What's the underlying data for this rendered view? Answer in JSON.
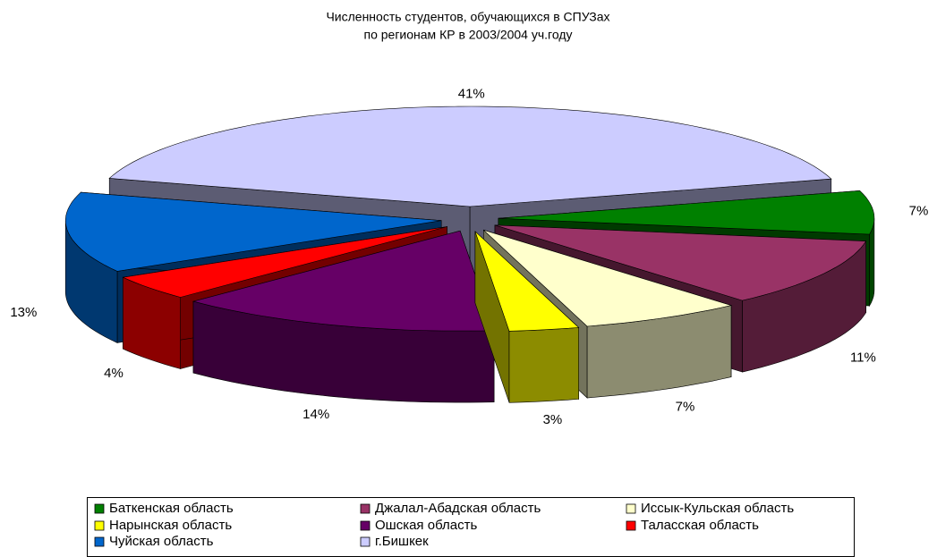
{
  "chart_data": {
    "type": "pie3d",
    "title": "Численность студентов, обучающихся в СПУЗах",
    "subtitle": "по регионам КР в 2003/2004 уч.году",
    "categories": [
      "Баткенская область",
      "Джалал-Абадская область",
      "Иссык-Кульская область",
      "Нарынская область",
      "Ошская область",
      "Таласская область",
      "Чуйская область",
      "г.Бишкек"
    ],
    "values": [
      7,
      11,
      7,
      3,
      14,
      4,
      13,
      41
    ],
    "value_labels": [
      "7%",
      "11%",
      "7%",
      "3%",
      "14%",
      "4%",
      "13%",
      "41%"
    ],
    "colors": [
      "#008000",
      "#993366",
      "#FFFFCC",
      "#FFFF00",
      "#660066",
      "#FF0000",
      "#0066CC",
      "#CCCCFF"
    ],
    "legend": "bottom"
  }
}
